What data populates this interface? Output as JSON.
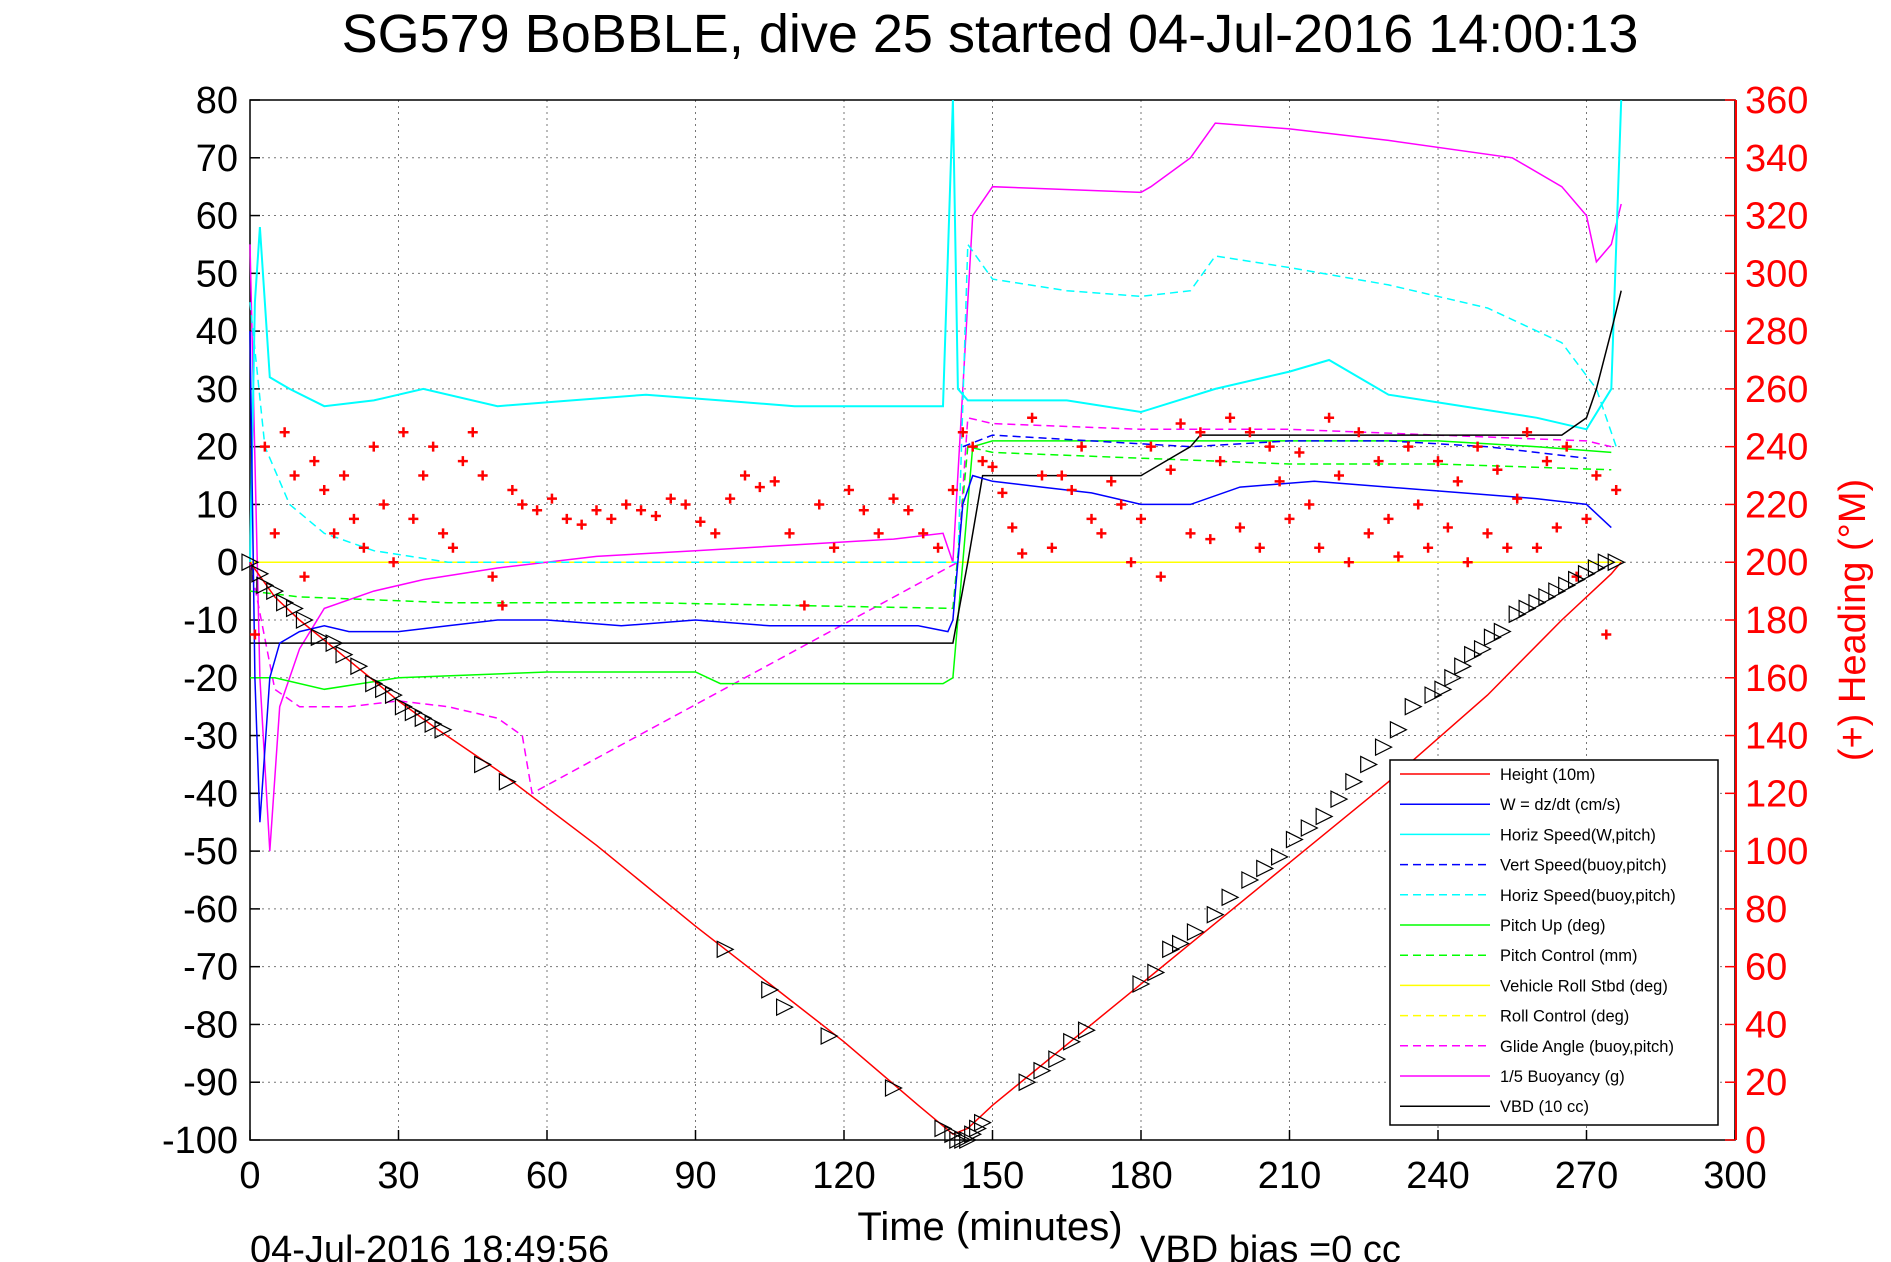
{
  "chart_data": {
    "type": "line",
    "title": "SG579 BoBBLE, dive 25 started 04-Jul-2016 14:00:13",
    "xlabel": "Time (minutes)",
    "ylabel": "",
    "y2label": "(+) Heading (°M)",
    "footer_left": "04-Jul-2016 18:49:56",
    "footer_right": "VBD bias =0 cc",
    "xlim": [
      0,
      300
    ],
    "ylim": [
      -100,
      80
    ],
    "y2lim": [
      0,
      360
    ],
    "xticks": [
      0,
      30,
      60,
      90,
      120,
      150,
      180,
      210,
      240,
      270,
      300
    ],
    "yticks": [
      -100,
      -90,
      -80,
      -70,
      -60,
      -50,
      -40,
      -30,
      -20,
      -10,
      0,
      10,
      20,
      30,
      40,
      50,
      60,
      70,
      80
    ],
    "y2ticks": [
      0,
      20,
      40,
      60,
      80,
      100,
      120,
      140,
      160,
      180,
      200,
      220,
      240,
      260,
      280,
      300,
      320,
      340,
      360
    ],
    "grid": true,
    "legend_position": "bottom-right",
    "colors": {
      "red": "#ff0000",
      "blue": "#0000ff",
      "cyan": "#00ffff",
      "green": "#00ff00",
      "yellow": "#ffff00",
      "magenta": "#ff00ff",
      "black": "#000000"
    },
    "series": [
      {
        "name": "Height (10m)",
        "color": "#ff0000",
        "dash": false,
        "x": [
          0,
          5,
          10,
          20,
          30,
          38,
          50,
          70,
          90,
          105,
          120,
          135,
          142,
          145,
          150,
          170,
          190,
          210,
          230,
          250,
          265,
          275,
          277
        ],
        "y": [
          0,
          -6,
          -10,
          -17,
          -24,
          -29,
          -36,
          -49,
          -63,
          -73,
          -83,
          -94,
          -99,
          -98,
          -94,
          -80,
          -66,
          -52,
          -38,
          -23,
          -10,
          -2,
          0
        ]
      },
      {
        "name": "W = dz/dt (cm/s)",
        "color": "#0000ff",
        "dash": false,
        "x": [
          0,
          1,
          2,
          4,
          6,
          10,
          15,
          20,
          30,
          40,
          50,
          60,
          75,
          90,
          105,
          120,
          135,
          141,
          142,
          144,
          146,
          150,
          160,
          170,
          180,
          190,
          200,
          215,
          230,
          245,
          260,
          270,
          275
        ],
        "y": [
          40,
          -20,
          -45,
          -20,
          -14,
          -12,
          -11,
          -12,
          -12,
          -11,
          -10,
          -10,
          -11,
          -10,
          -11,
          -11,
          -11,
          -12,
          -10,
          10,
          15,
          14,
          13,
          12,
          10,
          10,
          13,
          14,
          13,
          12,
          11,
          10,
          6
        ]
      },
      {
        "name": "Horiz Speed(W,pitch)",
        "color": "#00ffff",
        "dash": false,
        "x": [
          0,
          1,
          2,
          4,
          8,
          15,
          25,
          35,
          50,
          65,
          80,
          95,
          110,
          125,
          140,
          142,
          143,
          145,
          150,
          165,
          180,
          195,
          210,
          218,
          230,
          245,
          260,
          270,
          275,
          277
        ],
        "y": [
          0,
          45,
          58,
          32,
          30,
          27,
          28,
          30,
          27,
          28,
          29,
          28,
          27,
          27,
          27,
          80,
          30,
          28,
          28,
          28,
          26,
          30,
          33,
          35,
          29,
          27,
          25,
          23,
          30,
          80
        ]
      },
      {
        "name": "Vert Speed(buoy,pitch)",
        "color": "#0000ff",
        "dash": true,
        "x": [
          144,
          150,
          170,
          190,
          210,
          230,
          250,
          270
        ],
        "y": [
          20,
          22,
          21,
          20,
          21,
          21,
          20,
          18
        ]
      },
      {
        "name": "Horiz Speed(buoy,pitch)",
        "color": "#00ffff",
        "dash": true,
        "x": [
          0,
          3,
          8,
          15,
          25,
          40,
          55,
          70,
          143,
          145,
          150,
          165,
          180,
          190,
          195,
          210,
          230,
          250,
          265,
          272,
          276
        ],
        "y": [
          45,
          20,
          10,
          5,
          2,
          0,
          0,
          0,
          0,
          55,
          49,
          47,
          46,
          47,
          53,
          51,
          48,
          44,
          38,
          30,
          20
        ]
      },
      {
        "name": "Pitch Up (deg)",
        "color": "#00ff00",
        "dash": false,
        "x": [
          0,
          5,
          15,
          30,
          60,
          90,
          95,
          120,
          140,
          142,
          146,
          150,
          180,
          210,
          240,
          260,
          275
        ],
        "y": [
          -20,
          -20,
          -22,
          -20,
          -19,
          -19,
          -21,
          -21,
          -21,
          -20,
          20,
          21,
          21,
          21,
          21,
          20,
          19
        ]
      },
      {
        "name": "Pitch Control (mm)",
        "color": "#00ff00",
        "dash": true,
        "x": [
          0,
          10,
          40,
          80,
          142,
          145,
          150,
          180,
          210,
          240,
          275
        ],
        "y": [
          -5,
          -6,
          -7,
          -7,
          -8,
          20,
          19,
          18,
          17,
          17,
          16
        ]
      },
      {
        "name": "Vehicle Roll Stbd (deg)",
        "color": "#ffff00",
        "dash": false,
        "x": [
          0,
          30,
          60,
          90,
          120,
          145,
          180,
          210,
          240,
          270,
          277
        ],
        "y": [
          0,
          0,
          0,
          0,
          0,
          0,
          0,
          0,
          0,
          0,
          0
        ]
      },
      {
        "name": "Roll Control (deg)",
        "color": "#ffff00",
        "dash": true,
        "x": [
          0,
          30,
          60,
          90,
          120,
          145,
          180,
          210,
          240,
          270,
          277
        ],
        "y": [
          0,
          0,
          0,
          0,
          0,
          0,
          0,
          0,
          0,
          0,
          0
        ]
      },
      {
        "name": "Glide Angle (buoy,pitch)",
        "color": "#ff00ff",
        "dash": true,
        "x": [
          0,
          5,
          10,
          20,
          30,
          40,
          50,
          55,
          57,
          143,
          145,
          150,
          180,
          210,
          240,
          270,
          275
        ],
        "y": [
          0,
          -22,
          -25,
          -25,
          -24,
          -25,
          -27,
          -30,
          -40,
          0,
          25,
          24,
          23,
          23,
          22,
          21,
          20
        ]
      },
      {
        "name": "1/5 Buoyancy (g)",
        "color": "#ff00ff",
        "dash": false,
        "x": [
          0,
          2,
          4,
          6,
          10,
          15,
          25,
          35,
          50,
          70,
          90,
          110,
          130,
          140,
          142,
          146,
          150,
          180,
          182,
          190,
          195,
          210,
          230,
          255,
          265,
          270,
          272,
          275,
          277
        ],
        "y": [
          55,
          -20,
          -50,
          -25,
          -15,
          -8,
          -5,
          -3,
          -1,
          1,
          2,
          3,
          4,
          5,
          0,
          60,
          65,
          64,
          65,
          70,
          76,
          75,
          73,
          70,
          65,
          60,
          52,
          55,
          62
        ]
      },
      {
        "name": "VBD (10 cc)",
        "color": "#000000",
        "dash": false,
        "x": [
          0,
          20,
          60,
          100,
          142,
          145,
          148,
          180,
          190,
          192,
          230,
          260,
          265,
          270,
          272,
          275,
          277
        ],
        "y": [
          -14,
          -14,
          -14,
          -14,
          -14,
          0,
          15,
          15,
          20,
          22,
          22,
          22,
          22,
          25,
          30,
          40,
          47
        ]
      }
    ],
    "heading_series": {
      "name": "(+) Heading (°M)",
      "color": "#ff0000",
      "axis": "right",
      "x": [
        1,
        3,
        5,
        7,
        9,
        11,
        13,
        15,
        17,
        19,
        21,
        23,
        25,
        27,
        29,
        31,
        33,
        35,
        37,
        39,
        41,
        43,
        45,
        47,
        49,
        51,
        53,
        55,
        58,
        61,
        64,
        67,
        70,
        73,
        76,
        79,
        82,
        85,
        88,
        91,
        94,
        97,
        100,
        103,
        106,
        109,
        112,
        115,
        118,
        121,
        124,
        127,
        130,
        133,
        136,
        139,
        142,
        144,
        146,
        148,
        150,
        152,
        154,
        156,
        158,
        160,
        162,
        164,
        166,
        168,
        170,
        172,
        174,
        176,
        178,
        180,
        182,
        184,
        186,
        188,
        190,
        192,
        194,
        196,
        198,
        200,
        202,
        204,
        206,
        208,
        210,
        212,
        214,
        216,
        218,
        220,
        222,
        224,
        226,
        228,
        230,
        232,
        234,
        236,
        238,
        240,
        242,
        244,
        246,
        248,
        250,
        252,
        254,
        256,
        258,
        260,
        262,
        264,
        266,
        268,
        270,
        272,
        274,
        276
      ],
      "y": [
        175,
        240,
        210,
        245,
        230,
        195,
        235,
        225,
        210,
        230,
        215,
        205,
        240,
        220,
        200,
        245,
        215,
        230,
        240,
        210,
        205,
        235,
        245,
        230,
        195,
        185,
        225,
        220,
        218,
        222,
        215,
        213,
        218,
        215,
        220,
        218,
        216,
        222,
        220,
        214,
        210,
        222,
        230,
        226,
        228,
        210,
        185,
        220,
        205,
        225,
        218,
        210,
        222,
        218,
        210,
        205,
        225,
        245,
        240,
        235,
        233,
        224,
        212,
        203,
        250,
        230,
        205,
        230,
        225,
        240,
        215,
        210,
        228,
        220,
        200,
        215,
        240,
        195,
        232,
        248,
        210,
        245,
        208,
        235,
        250,
        212,
        245,
        205,
        240,
        228,
        215,
        238,
        220,
        205,
        250,
        230,
        200,
        245,
        210,
        235,
        215,
        202,
        240,
        220,
        205,
        235,
        212,
        228,
        200,
        240,
        210,
        232,
        205,
        222,
        245,
        205,
        235,
        212,
        240,
        195,
        215,
        230,
        175,
        225
      ]
    },
    "dive_markers": {
      "name": "Height (10m) sample points",
      "marker": "triangle",
      "color": "#000000",
      "x": [
        0,
        2,
        3,
        5,
        7,
        9,
        11,
        14,
        17,
        19,
        22,
        25,
        27,
        29,
        31,
        33,
        35,
        37,
        39,
        47,
        52,
        96,
        105,
        108,
        117,
        130,
        140,
        142,
        143,
        144,
        145,
        146,
        147,
        148,
        157,
        160,
        163,
        166,
        169,
        180,
        183,
        186,
        188,
        191,
        195,
        198,
        202,
        205,
        208,
        211,
        214,
        217,
        220,
        223,
        226,
        229,
        232,
        235,
        239,
        241,
        243,
        245,
        247,
        249,
        251,
        253,
        256,
        258,
        260,
        262,
        264,
        266,
        268,
        270,
        272,
        274,
        276
      ],
      "y": [
        0,
        -2,
        -4,
        -5,
        -7,
        -8,
        -10,
        -13,
        -14,
        -16,
        -18,
        -21,
        -22,
        -23,
        -25,
        -26,
        -27,
        -28,
        -29,
        -35,
        -38,
        -67,
        -74,
        -77,
        -82,
        -91,
        -98,
        -99,
        -100,
        -100,
        -100,
        -99,
        -98,
        -97,
        -90,
        -88,
        -86,
        -83,
        -81,
        -73,
        -71,
        -67,
        -66,
        -64,
        -61,
        -58,
        -55,
        -53,
        -51,
        -48,
        -46,
        -44,
        -41,
        -38,
        -35,
        -32,
        -29,
        -25,
        -23,
        -22,
        -20,
        -18,
        -16,
        -15,
        -13,
        -12,
        -9,
        -8,
        -7,
        -6,
        -5,
        -4,
        -3,
        -2,
        -1,
        0,
        0
      ]
    }
  }
}
